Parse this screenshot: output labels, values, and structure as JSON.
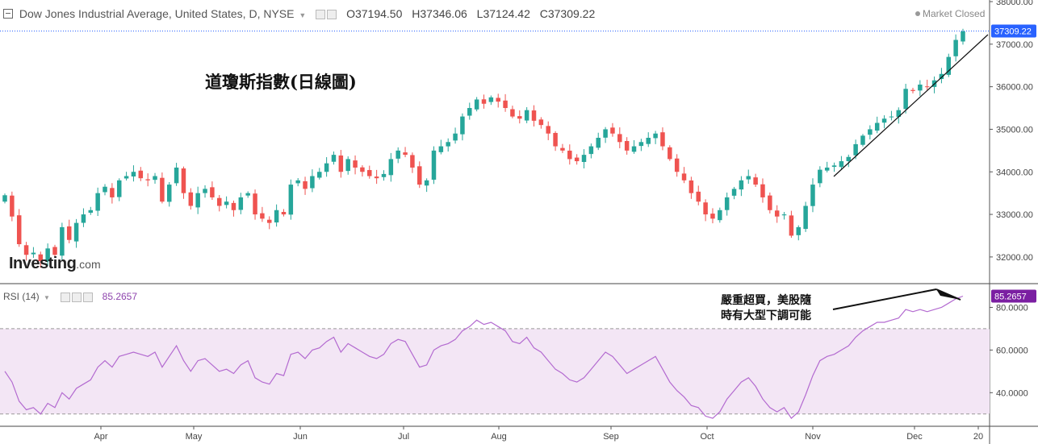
{
  "header": {
    "title": "Dow Jones Industrial Average, United States, D, NYSE",
    "ohlc": {
      "o": "O37194.50",
      "h": "H37346.06",
      "l": "L37124.42",
      "c": "C37309.22"
    },
    "market_status": "Market Closed",
    "last_price_tag": "37309.22"
  },
  "annotation_title": "道瓊斯指數(日線圖)",
  "annotation_rsi": [
    "嚴重超買，美股隨",
    "時有大型下調可能"
  ],
  "logo": {
    "main": "Investing",
    "suffix": ".com"
  },
  "rsi_panel": {
    "label": "RSI (14)",
    "value": "85.2657",
    "tag": "85.2657"
  },
  "colors": {
    "up": "#26a69a",
    "down": "#ef5350",
    "rsi_line": "#b36ad0",
    "rsi_band": "#f3e6f5",
    "accent": "#2962ff"
  },
  "chart_data": [
    {
      "type": "candlestick",
      "title": "Dow Jones Industrial Average, United States, D, NYSE",
      "ylim": [
        31600,
        38000
      ],
      "y_ticks": [
        "38000.00",
        "37000.00",
        "36000.00",
        "35000.00",
        "34000.00",
        "33000.00",
        "32000.00"
      ],
      "x_ticks": [
        "Apr",
        "May",
        "Jun",
        "Jul",
        "Aug",
        "Sep",
        "Oct",
        "Nov",
        "Dec",
        "20"
      ],
      "last_close": 37309.22,
      "closes": [
        33450,
        32950,
        32300,
        32050,
        32100,
        31900,
        32200,
        32050,
        32700,
        32400,
        32800,
        33000,
        33100,
        33500,
        33650,
        33400,
        33800,
        33900,
        34000,
        33850,
        33800,
        33900,
        33300,
        33700,
        34100,
        33500,
        33200,
        33500,
        33600,
        33400,
        33200,
        33300,
        33100,
        33400,
        33500,
        33000,
        32900,
        32800,
        33100,
        33000,
        33700,
        33800,
        33600,
        33900,
        34000,
        34200,
        34400,
        34000,
        34300,
        34100,
        34000,
        33900,
        33850,
        33950,
        34300,
        34500,
        34400,
        34100,
        33700,
        33800,
        34500,
        34600,
        34700,
        34900,
        35300,
        35500,
        35700,
        35600,
        35750,
        35650,
        35500,
        35300,
        35250,
        35450,
        35200,
        35100,
        34900,
        34600,
        34500,
        34300,
        34250,
        34400,
        34600,
        34800,
        35000,
        34900,
        34700,
        34500,
        34600,
        34700,
        34800,
        34900,
        34600,
        34300,
        34000,
        33800,
        33500,
        33300,
        33000,
        32900,
        33100,
        33400,
        33600,
        33800,
        33900,
        33700,
        33400,
        33100,
        32950,
        33000,
        32500,
        32700,
        33200,
        33700,
        34050,
        34100,
        34150,
        34250,
        34350,
        34650,
        34850,
        35000,
        35150,
        35250,
        35300,
        35450,
        35950,
        35900,
        36050,
        36000,
        36150,
        36300,
        36700,
        37100,
        37300
      ]
    },
    {
      "type": "line",
      "title": "RSI (14)",
      "ylim": [
        25,
        90
      ],
      "y_ticks": [
        "80.0000",
        "60.0000",
        "40.0000"
      ],
      "bands": [
        30,
        70
      ],
      "last_value": 85.2657,
      "values": [
        50,
        45,
        36,
        32,
        33,
        30,
        35,
        33,
        40,
        37,
        42,
        44,
        46,
        52,
        55,
        52,
        57,
        58,
        59,
        58,
        57,
        59,
        52,
        57,
        62,
        55,
        50,
        55,
        56,
        53,
        50,
        51,
        49,
        53,
        55,
        47,
        45,
        44,
        49,
        48,
        58,
        59,
        56,
        60,
        61,
        64,
        66,
        59,
        63,
        61,
        59,
        57,
        56,
        58,
        63,
        65,
        64,
        58,
        52,
        53,
        60,
        62,
        63,
        65,
        69,
        71,
        74,
        72,
        73,
        71,
        69,
        64,
        63,
        66,
        61,
        59,
        55,
        51,
        49,
        46,
        45,
        47,
        51,
        55,
        59,
        57,
        53,
        49,
        51,
        53,
        55,
        57,
        51,
        45,
        41,
        38,
        34,
        33,
        29,
        28,
        31,
        37,
        41,
        45,
        47,
        43,
        37,
        33,
        31,
        33,
        28,
        31,
        39,
        48,
        55,
        57,
        58,
        60,
        62,
        66,
        69,
        71,
        73,
        73,
        74,
        75,
        79,
        78,
        79,
        78,
        79,
        80,
        82,
        84,
        85.27
      ]
    }
  ]
}
